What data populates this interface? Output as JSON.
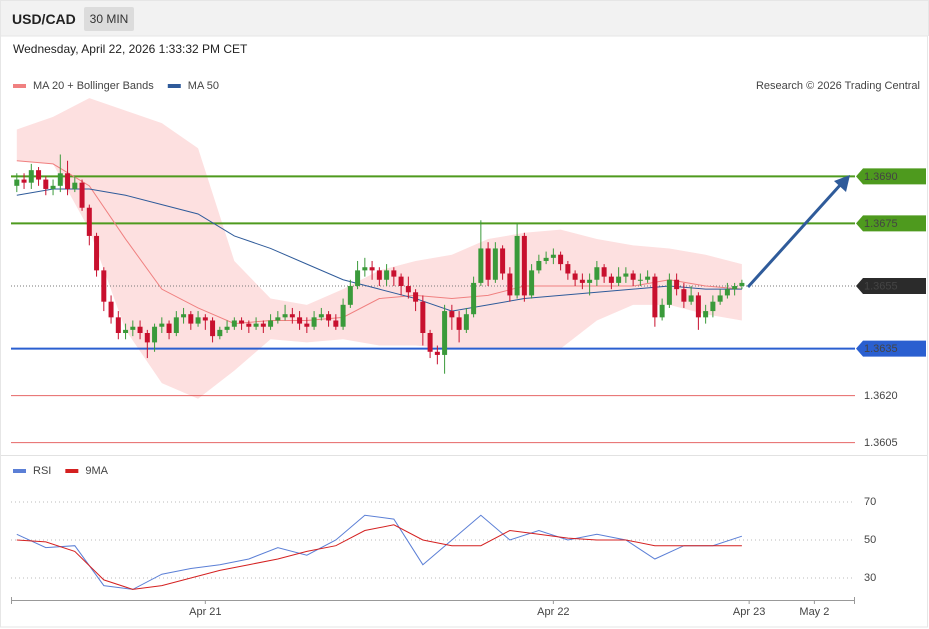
{
  "header": {
    "symbol": "USD/CAD",
    "timeframe": "30 MIN",
    "timestamp": "Wednesday, April 22, 2026 1:33:32 PM CET"
  },
  "chart_data": [
    {
      "type": "candlestick",
      "credit": "Research © 2026 Trading Central",
      "up_color": "#3a9a3a",
      "down_color": "#c8102e",
      "xlim": [
        -0.8,
        115.6
      ],
      "ylim": [
        1.3602,
        1.3716
      ],
      "ohlc": [
        [
          1.3687,
          1.3691,
          1.3685,
          1.3689
        ],
        [
          1.3689,
          1.3691,
          1.3686,
          1.3688
        ],
        [
          1.3688,
          1.3694,
          1.3686,
          1.3692
        ],
        [
          1.3692,
          1.3693,
          1.3687,
          1.3689
        ],
        [
          1.3689,
          1.369,
          1.3684,
          1.3686
        ],
        [
          1.3686,
          1.3689,
          1.3684,
          1.3687
        ],
        [
          1.3687,
          1.3697,
          1.3685,
          1.3691
        ],
        [
          1.3691,
          1.3695,
          1.3684,
          1.3686
        ],
        [
          1.3686,
          1.369,
          1.3685,
          1.3688
        ],
        [
          1.3688,
          1.3689,
          1.3679,
          1.368
        ],
        [
          1.368,
          1.3681,
          1.3668,
          1.3671
        ],
        [
          1.3671,
          1.3672,
          1.3658,
          1.366
        ],
        [
          1.366,
          1.3661,
          1.3647,
          1.365
        ],
        [
          1.365,
          1.3652,
          1.3643,
          1.3645
        ],
        [
          1.3645,
          1.3647,
          1.3638,
          1.364
        ],
        [
          1.364,
          1.3643,
          1.3638,
          1.3641
        ],
        [
          1.3641,
          1.3644,
          1.3639,
          1.3642
        ],
        [
          1.3642,
          1.3644,
          1.3638,
          1.364
        ],
        [
          1.364,
          1.3641,
          1.3632,
          1.3637
        ],
        [
          1.3637,
          1.3643,
          1.3634,
          1.3642
        ],
        [
          1.3642,
          1.3645,
          1.364,
          1.3643
        ],
        [
          1.3643,
          1.3644,
          1.3638,
          1.364
        ],
        [
          1.364,
          1.3647,
          1.3639,
          1.3645
        ],
        [
          1.3645,
          1.3648,
          1.3643,
          1.3646
        ],
        [
          1.3646,
          1.3647,
          1.3641,
          1.3643
        ],
        [
          1.3643,
          1.3647,
          1.3642,
          1.3645
        ],
        [
          1.3645,
          1.3646,
          1.3641,
          1.3644
        ],
        [
          1.3644,
          1.3645,
          1.3637,
          1.3639
        ],
        [
          1.3639,
          1.3642,
          1.3638,
          1.3641
        ],
        [
          1.3641,
          1.3644,
          1.364,
          1.3642
        ],
        [
          1.3642,
          1.3645,
          1.3641,
          1.3644
        ],
        [
          1.3644,
          1.3645,
          1.3641,
          1.3643
        ],
        [
          1.3643,
          1.3644,
          1.364,
          1.3642
        ],
        [
          1.3642,
          1.3645,
          1.3641,
          1.3643
        ],
        [
          1.3643,
          1.3644,
          1.364,
          1.3642
        ],
        [
          1.3642,
          1.3646,
          1.3641,
          1.3644
        ],
        [
          1.3644,
          1.3647,
          1.3643,
          1.3645
        ],
        [
          1.3645,
          1.3649,
          1.3644,
          1.3646
        ],
        [
          1.3646,
          1.3648,
          1.3643,
          1.3645
        ],
        [
          1.3645,
          1.3647,
          1.3641,
          1.3643
        ],
        [
          1.3643,
          1.3645,
          1.364,
          1.3642
        ],
        [
          1.3642,
          1.3647,
          1.3641,
          1.3645
        ],
        [
          1.3645,
          1.3648,
          1.3644,
          1.3646
        ],
        [
          1.3646,
          1.3647,
          1.3642,
          1.3644
        ],
        [
          1.3644,
          1.3646,
          1.3641,
          1.3642
        ],
        [
          1.3642,
          1.3651,
          1.3641,
          1.3649
        ],
        [
          1.3649,
          1.3657,
          1.3648,
          1.3655
        ],
        [
          1.3655,
          1.3663,
          1.3654,
          1.366
        ],
        [
          1.366,
          1.3664,
          1.3658,
          1.3661
        ],
        [
          1.3661,
          1.3663,
          1.3657,
          1.366
        ],
        [
          1.366,
          1.3661,
          1.3655,
          1.3657
        ],
        [
          1.3657,
          1.3662,
          1.3655,
          1.366
        ],
        [
          1.366,
          1.3661,
          1.3655,
          1.3658
        ],
        [
          1.3658,
          1.3659,
          1.3652,
          1.3655
        ],
        [
          1.3655,
          1.3658,
          1.3651,
          1.3653
        ],
        [
          1.3653,
          1.3654,
          1.3647,
          1.365
        ],
        [
          1.365,
          1.3652,
          1.3636,
          1.364
        ],
        [
          1.364,
          1.3641,
          1.3632,
          1.3634
        ],
        [
          1.3634,
          1.3636,
          1.363,
          1.3633
        ],
        [
          1.3633,
          1.3649,
          1.3627,
          1.3647
        ],
        [
          1.3647,
          1.3649,
          1.3641,
          1.3645
        ],
        [
          1.3645,
          1.3647,
          1.3637,
          1.3641
        ],
        [
          1.3641,
          1.3648,
          1.364,
          1.3646
        ],
        [
          1.3646,
          1.3658,
          1.3645,
          1.3656
        ],
        [
          1.3656,
          1.3676,
          1.3655,
          1.3667
        ],
        [
          1.3667,
          1.3669,
          1.3655,
          1.3657
        ],
        [
          1.3657,
          1.3669,
          1.3656,
          1.3667
        ],
        [
          1.3667,
          1.3668,
          1.3657,
          1.3659
        ],
        [
          1.3659,
          1.3661,
          1.365,
          1.3652
        ],
        [
          1.3652,
          1.3675,
          1.3651,
          1.3671
        ],
        [
          1.3671,
          1.3672,
          1.365,
          1.3652
        ],
        [
          1.3652,
          1.3662,
          1.3651,
          1.366
        ],
        [
          1.366,
          1.3665,
          1.3659,
          1.3663
        ],
        [
          1.3663,
          1.3666,
          1.3662,
          1.3664
        ],
        [
          1.3664,
          1.3667,
          1.3662,
          1.3665
        ],
        [
          1.3665,
          1.3666,
          1.366,
          1.3662
        ],
        [
          1.3662,
          1.3663,
          1.3657,
          1.3659
        ],
        [
          1.3659,
          1.366,
          1.3655,
          1.3657
        ],
        [
          1.3657,
          1.3659,
          1.3654,
          1.3656
        ],
        [
          1.3656,
          1.3659,
          1.3652,
          1.3657
        ],
        [
          1.3657,
          1.3663,
          1.3655,
          1.3661
        ],
        [
          1.3661,
          1.3662,
          1.3656,
          1.3658
        ],
        [
          1.3658,
          1.3659,
          1.3654,
          1.3656
        ],
        [
          1.3656,
          1.3661,
          1.3655,
          1.3658
        ],
        [
          1.3658,
          1.3661,
          1.3656,
          1.3659
        ],
        [
          1.3659,
          1.366,
          1.3655,
          1.3657
        ],
        [
          1.3657,
          1.3659,
          1.3655,
          1.3657
        ],
        [
          1.3657,
          1.366,
          1.3656,
          1.3658
        ],
        [
          1.3658,
          1.3659,
          1.3642,
          1.3645
        ],
        [
          1.3645,
          1.3651,
          1.3644,
          1.3649
        ],
        [
          1.3649,
          1.3659,
          1.3648,
          1.3657
        ],
        [
          1.3657,
          1.3659,
          1.3652,
          1.3654
        ],
        [
          1.3654,
          1.3656,
          1.3648,
          1.365
        ],
        [
          1.365,
          1.3655,
          1.3649,
          1.3652
        ],
        [
          1.3652,
          1.3653,
          1.3641,
          1.3645
        ],
        [
          1.3645,
          1.3649,
          1.3643,
          1.3647
        ],
        [
          1.3647,
          1.3652,
          1.3645,
          1.365
        ],
        [
          1.365,
          1.3654,
          1.3649,
          1.3652
        ],
        [
          1.3652,
          1.3656,
          1.3651,
          1.3654
        ],
        [
          1.3654,
          1.3656,
          1.3652,
          1.3655
        ],
        [
          1.3655,
          1.3657,
          1.3654,
          1.3656
        ]
      ],
      "series": [
        {
          "name": "MA 20 + Bollinger Bands",
          "color": "#f08080",
          "band_color": "#fde0e0",
          "x": [
            0,
            5,
            10,
            15,
            20,
            25,
            30,
            35,
            40,
            45,
            50,
            55,
            60,
            65,
            70,
            75,
            80,
            85,
            90,
            95,
            100
          ],
          "values": [
            1.3695,
            1.3694,
            1.3687,
            1.367,
            1.3654,
            1.3648,
            1.3643,
            1.3644,
            1.3644,
            1.3645,
            1.3651,
            1.3652,
            1.3651,
            1.3652,
            1.3655,
            1.3655,
            1.3655,
            1.3655,
            1.3657,
            1.3655,
            1.3654
          ],
          "upper": [
            1.3705,
            1.3709,
            1.3715,
            1.3711,
            1.3707,
            1.3699,
            1.3663,
            1.3651,
            1.3649,
            1.3654,
            1.366,
            1.3663,
            1.3665,
            1.367,
            1.3672,
            1.3673,
            1.367,
            1.3668,
            1.3667,
            1.3665,
            1.3662
          ],
          "lower": [
            1.3695,
            1.3694,
            1.3673,
            1.3641,
            1.3624,
            1.3619,
            1.3628,
            1.3638,
            1.3637,
            1.3638,
            1.3636,
            1.3636,
            1.3635,
            1.3635,
            1.3635,
            1.3635,
            1.3644,
            1.3649,
            1.3649,
            1.3646,
            1.3644
          ]
        },
        {
          "name": "MA 50",
          "color": "#2f5b9a",
          "x": [
            0,
            5,
            10,
            15,
            20,
            25,
            30,
            35,
            40,
            45,
            50,
            55,
            60,
            65,
            70,
            75,
            80,
            85,
            90,
            95,
            100
          ],
          "values": [
            1.3684,
            1.3686,
            1.3686,
            1.3684,
            1.3681,
            1.3678,
            1.3671,
            1.3667,
            1.3662,
            1.3657,
            1.3654,
            1.3651,
            1.3647,
            1.3649,
            1.3651,
            1.3652,
            1.3653,
            1.3654,
            1.3655,
            1.3654,
            1.3654
          ]
        }
      ],
      "levels": [
        {
          "value": 1.369,
          "label": "1.3690",
          "color": "#4e9a1e",
          "line": "solid",
          "label_style": "box"
        },
        {
          "value": 1.3675,
          "label": "1.3675",
          "color": "#4e9a1e",
          "line": "solid",
          "label_style": "box"
        },
        {
          "value": 1.3655,
          "label": "1.3655",
          "color": "#2b2b2b",
          "line": "dotted",
          "label_style": "box"
        },
        {
          "value": 1.3635,
          "label": "1.3635",
          "color": "#2a5fd0",
          "line": "solid",
          "label_style": "box"
        },
        {
          "value": 1.362,
          "label": "1.3620",
          "color": "#e04040",
          "line": "solid",
          "label_style": "text"
        },
        {
          "value": 1.3605,
          "label": "1.3605",
          "color": "#e04040",
          "line": "solid",
          "label_style": "text"
        }
      ]
    },
    {
      "type": "line",
      "xlim": [
        -0.8,
        115.6
      ],
      "xticks": [
        {
          "value": 26,
          "label": "Apr 21"
        },
        {
          "value": 74,
          "label": "Apr 22"
        },
        {
          "value": 101,
          "label": "Apr 23"
        },
        {
          "value": 110,
          "label": "May 2"
        }
      ],
      "ylim": [
        20,
        90
      ],
      "yticks": [
        70,
        50,
        30
      ],
      "grid": true,
      "series": [
        {
          "name": "RSI",
          "color": "#5b7fd6",
          "x": [
            0,
            4,
            8,
            12,
            16,
            20,
            24,
            28,
            32,
            36,
            40,
            44,
            48,
            52,
            56,
            60,
            64,
            68,
            72,
            76,
            80,
            84,
            88,
            92,
            96,
            100
          ],
          "values": [
            53,
            46,
            47,
            26,
            24,
            32,
            35,
            37,
            40,
            46,
            42,
            50,
            63,
            61,
            37,
            50,
            63,
            50,
            55,
            50,
            53,
            50,
            40,
            47,
            47,
            52
          ]
        },
        {
          "name": "9MA",
          "color": "#d42020",
          "x": [
            0,
            4,
            8,
            12,
            16,
            20,
            24,
            28,
            32,
            36,
            40,
            44,
            48,
            52,
            56,
            60,
            64,
            68,
            72,
            76,
            80,
            84,
            88,
            92,
            96,
            100
          ],
          "values": [
            50,
            49,
            44,
            29,
            24,
            26,
            30,
            34,
            37,
            40,
            44,
            47,
            55,
            58,
            50,
            47,
            47,
            55,
            53,
            51,
            50,
            50,
            47,
            47,
            47,
            47
          ]
        }
      ]
    }
  ]
}
